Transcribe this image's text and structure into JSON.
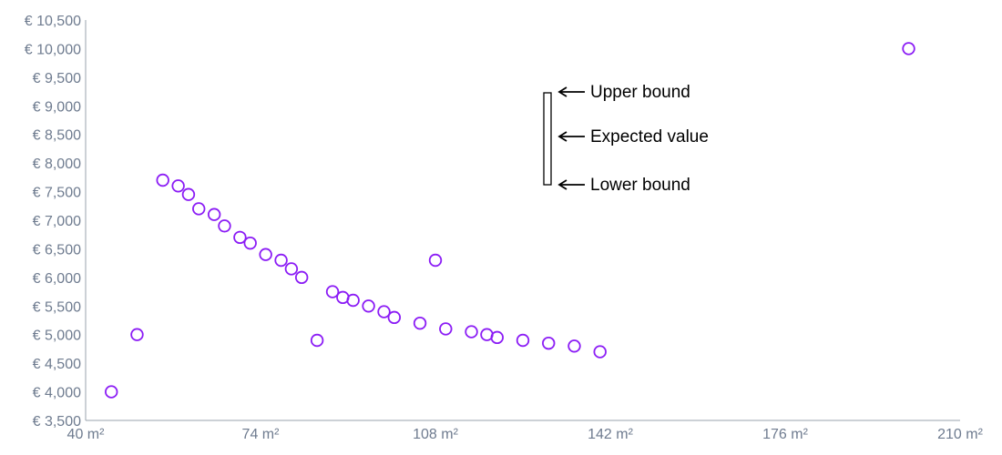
{
  "chart_data": {
    "type": "scatter",
    "title": "",
    "xlabel": "",
    "ylabel": "",
    "x_unit_suffix": " m²",
    "y_unit_prefix": "€ ",
    "xlim": [
      40,
      210
    ],
    "ylim": [
      3500,
      10500
    ],
    "x_ticks": [
      "40 m²",
      "74 m²",
      "108 m²",
      "142 m²",
      "176 m²",
      "210 m²"
    ],
    "y_ticks": [
      "€ 3,500",
      "€ 4,000",
      "€ 4,500",
      "€ 5,000",
      "€ 5,500",
      "€ 6,000",
      "€ 6,500",
      "€ 7,000",
      "€ 7,500",
      "€ 8,000",
      "€ 8,500",
      "€ 9,000",
      "€ 9,500",
      "€ 10,000",
      "€ 10,500"
    ],
    "grid": false,
    "marker_color": "#8b1cf5",
    "points": [
      {
        "x": 45,
        "y": 4000
      },
      {
        "x": 50,
        "y": 5000
      },
      {
        "x": 55,
        "y": 7700
      },
      {
        "x": 58,
        "y": 7600
      },
      {
        "x": 60,
        "y": 7450
      },
      {
        "x": 62,
        "y": 7200
      },
      {
        "x": 65,
        "y": 7100
      },
      {
        "x": 67,
        "y": 6900
      },
      {
        "x": 70,
        "y": 6700
      },
      {
        "x": 72,
        "y": 6600
      },
      {
        "x": 75,
        "y": 6400
      },
      {
        "x": 78,
        "y": 6300
      },
      {
        "x": 80,
        "y": 6150
      },
      {
        "x": 82,
        "y": 6000
      },
      {
        "x": 85,
        "y": 4900
      },
      {
        "x": 88,
        "y": 5750
      },
      {
        "x": 90,
        "y": 5650
      },
      {
        "x": 92,
        "y": 5600
      },
      {
        "x": 95,
        "y": 5500
      },
      {
        "x": 98,
        "y": 5400
      },
      {
        "x": 100,
        "y": 5300
      },
      {
        "x": 105,
        "y": 5200
      },
      {
        "x": 108,
        "y": 6300
      },
      {
        "x": 110,
        "y": 5100
      },
      {
        "x": 115,
        "y": 5050
      },
      {
        "x": 118,
        "y": 5000
      },
      {
        "x": 120,
        "y": 4950
      },
      {
        "x": 125,
        "y": 4900
      },
      {
        "x": 130,
        "y": 4850
      },
      {
        "x": 135,
        "y": 4800
      },
      {
        "x": 140,
        "y": 4700
      },
      {
        "x": 200,
        "y": 10000
      }
    ],
    "annotation": {
      "upper_label": "Upper bound",
      "expected_label": "Expected value",
      "lower_label": "Lower bound"
    }
  }
}
